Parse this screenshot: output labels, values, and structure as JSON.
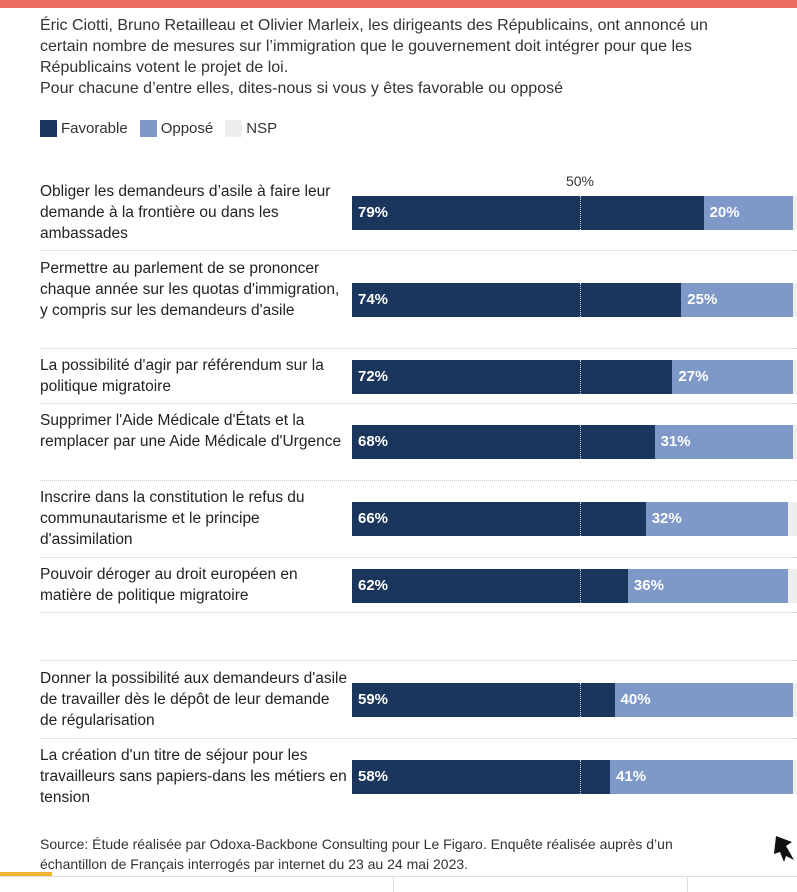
{
  "colors": {
    "favorable": "#1b365d",
    "oppose": "#7e98c8",
    "nsp": "#eeeeee",
    "banner": "#ec6a60"
  },
  "subtitle": {
    "line1": "Éric Ciotti, Bruno Retailleau et Olivier Marleix, les dirigeants des Républicains, ont annoncé un",
    "line2": "certain nombre de mesures sur l’immigration que le gouvernement doit intégrer pour que les",
    "line3": "Républicains votent le projet de loi.",
    "line4": "Pour chacune d’entre elles, dites-nous si vous y êtes favorable ou opposé"
  },
  "legend": {
    "favorable": "Favorable",
    "oppose": "Opposé",
    "nsp": "NSP"
  },
  "chart_data": {
    "type": "bar",
    "orientation": "horizontal",
    "stacked": true,
    "reference_label": "50%",
    "reference_value": 50,
    "xlim": [
      0,
      100
    ],
    "categories": [
      "Obliger les demandeurs d’asile à faire leur demande à la frontière ou dans les ambassades",
      "Permettre au parlement de se prononcer chaque année sur les quotas d'immigration, y compris sur les demandeurs d'asile",
      "La possibilité d'agir par référendum sur la politique migratoire",
      "Supprimer l'Aide Médicale d'États et la remplacer par une Aide Médicale d'Urgence",
      "Inscrire dans la constitution le refus du communautarisme et le principe d'assimilation",
      "Pouvoir déroger au droit européen en matière de politique migratoire",
      "Donner la possibilité aux demandeurs d'asile de travailler dès le dépôt de leur demande de régularisation",
      "La création d'un titre de séjour pour les travailleurs sans papiers-dans les métiers en tension"
    ],
    "series": [
      {
        "name": "Favorable",
        "values": [
          79,
          74,
          72,
          68,
          66,
          62,
          59,
          58
        ]
      },
      {
        "name": "Opposé",
        "values": [
          20,
          25,
          27,
          31,
          32,
          36,
          40,
          41
        ]
      },
      {
        "name": "NSP",
        "values": [
          1,
          1,
          1,
          1,
          2,
          2,
          1,
          1
        ]
      }
    ],
    "value_labels": {
      "favorable": [
        "79%",
        "74%",
        "72%",
        "68%",
        "66%",
        "62%",
        "59%",
        "58%"
      ],
      "oppose": [
        "20%",
        "25%",
        "27%",
        "31%",
        "32%",
        "36%",
        "40%",
        "41%"
      ]
    }
  },
  "source": {
    "line1": "Source: Étude réalisée par Odoxa-Backbone Consulting pour Le Figaro. Enquête réalisée auprès d’un",
    "line2": "échantillon de Français interrogés par internet du 23 au 24 mai 2023."
  }
}
